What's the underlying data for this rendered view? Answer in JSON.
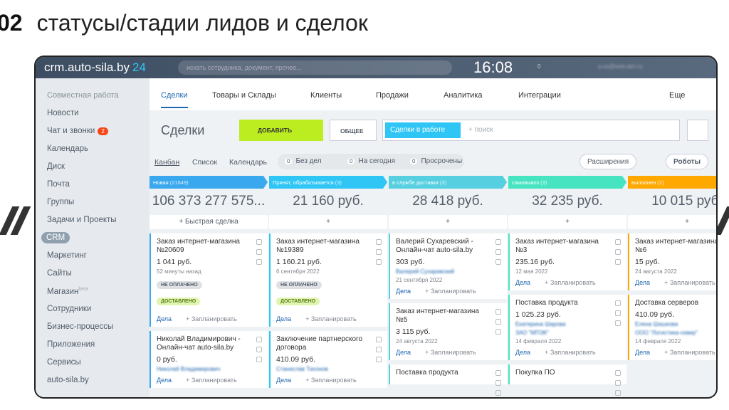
{
  "header": {
    "number": "02",
    "title": "статусы/стадии лидов и сделок"
  },
  "topbar": {
    "site": "crm.auto-sila.by",
    "site_suffix": "24",
    "search": "искать сотрудника, документ, прочее...",
    "time": "16:08",
    "flag": "0",
    "user": "a.os@web-aim.ru"
  },
  "sidebar": {
    "section": "Совместная работа",
    "items": [
      {
        "label": "Новости"
      },
      {
        "label": "Чат и звонки",
        "badge": "2"
      },
      {
        "label": "Календарь"
      },
      {
        "label": "Диск"
      },
      {
        "label": "Почта"
      },
      {
        "label": "Группы"
      },
      {
        "label": "Задачи и Проекты"
      },
      {
        "label": "CRM",
        "active": true
      },
      {
        "label": "Маркетинг"
      },
      {
        "label": "Сайты"
      },
      {
        "label": "Магазин",
        "sup": "beta"
      },
      {
        "label": "Сотрудники"
      },
      {
        "label": "Бизнес-процессы"
      },
      {
        "label": "Приложения"
      },
      {
        "label": "Сервисы"
      },
      {
        "label": "auto-sila.by"
      }
    ]
  },
  "tabs": {
    "items": [
      "Сделки",
      "Товары и Склады",
      "Клиенты",
      "Продажи",
      "Аналитика",
      "Интеграции"
    ],
    "more": "Еще"
  },
  "toolbar": {
    "title": "Сделки",
    "add": "ДОБАВИТЬ",
    "general": "ОБЩЕЕ",
    "filter": "Сделки в работе",
    "search": "+ поиск"
  },
  "views": {
    "items": [
      "Канбан",
      "Список",
      "Календарь"
    ],
    "counters": [
      {
        "count": "0",
        "label": "Без дел"
      },
      {
        "count": "0",
        "label": "На сегодня"
      },
      {
        "count": "0",
        "label": "Просрочены"
      }
    ],
    "extensions": "Расширения",
    "robots": "Роботы"
  },
  "kanban": {
    "deals": "Дела",
    "plan": "+ Запланировать",
    "columns": [
      {
        "name": "Новая",
        "count": "(21649)",
        "color": "#39a8ef",
        "total": "106 373 277 575...",
        "add": "+ Быстрая сделка",
        "cards": [
          {
            "title": "Заказ интернет-магазина №20609",
            "amount": "1 041 руб.",
            "date": "52 минуты назад",
            "badges": [
              "НЕ ОПЛАЧЕНО",
              "ДОСТАВЛЕНО"
            ]
          },
          {
            "title": "Николай Владимирович - Онлайн-чат auto-sila.by",
            "amount": "0 руб.",
            "contact": "Николай Владимирович"
          }
        ]
      },
      {
        "name": "Принят, обрабатывается",
        "count": "(3)",
        "color": "#2fc6f6",
        "total": "21 160 руб.",
        "add": "+",
        "cards": [
          {
            "title": "Заказ интернет-магазина №19389",
            "amount": "1 160.21 руб.",
            "date": "6 сентября 2022",
            "badges": [
              "НЕ ОПЛАЧЕНО",
              "ДОСТАВЛЕНО"
            ]
          },
          {
            "title": "Заключение партнерского договора",
            "amount": "410.09 руб.",
            "contact": "Станислав Тихонов"
          }
        ]
      },
      {
        "name": "в службе доставки",
        "count": "(3)",
        "color": "#56d0e0",
        "total": "28 418 руб.",
        "add": "+",
        "cards": [
          {
            "title": "Валерий Сухаревский - Онлайн-чат auto-sila.by",
            "amount": "303 руб.",
            "contact": "Валерий Сухаревский",
            "date": "21 сентября 2022"
          },
          {
            "title": "Заказ интернет-магазина №5",
            "amount": "3 115 руб.",
            "date": "24 августа 2022"
          },
          {
            "title": "Поставка продукта"
          }
        ]
      },
      {
        "name": "самовывоз",
        "count": "(3)",
        "color": "#47e4c2",
        "total": "32 235 руб.",
        "add": "+",
        "cards": [
          {
            "title": "Заказ интернет-магазина №3",
            "amount": "235.16 руб.",
            "date": "12 мая 2022"
          },
          {
            "title": "Поставка продукта",
            "amount": "1 025.23 руб.",
            "contact": "Екатерина Шарова",
            "company": "ЗАО \"МПЭК\"",
            "date": "14 февраля 2022"
          },
          {
            "title": "Покупка ПО"
          }
        ]
      },
      {
        "name": "выполнен",
        "count": "(2)",
        "color": "#ffa900",
        "total": "10 015 руб.",
        "add": "+",
        "cards": [
          {
            "title": "Заказ интернет-магазина №6",
            "amount": "15 руб.",
            "date": "24 августа 2022"
          },
          {
            "title": "Доставка серверов",
            "amount": "410.09 руб.",
            "contact": "Елена Шашкова",
            "company": "ООО \"Логистика-север\"",
            "date": "14 февраля 2022"
          }
        ]
      }
    ]
  }
}
